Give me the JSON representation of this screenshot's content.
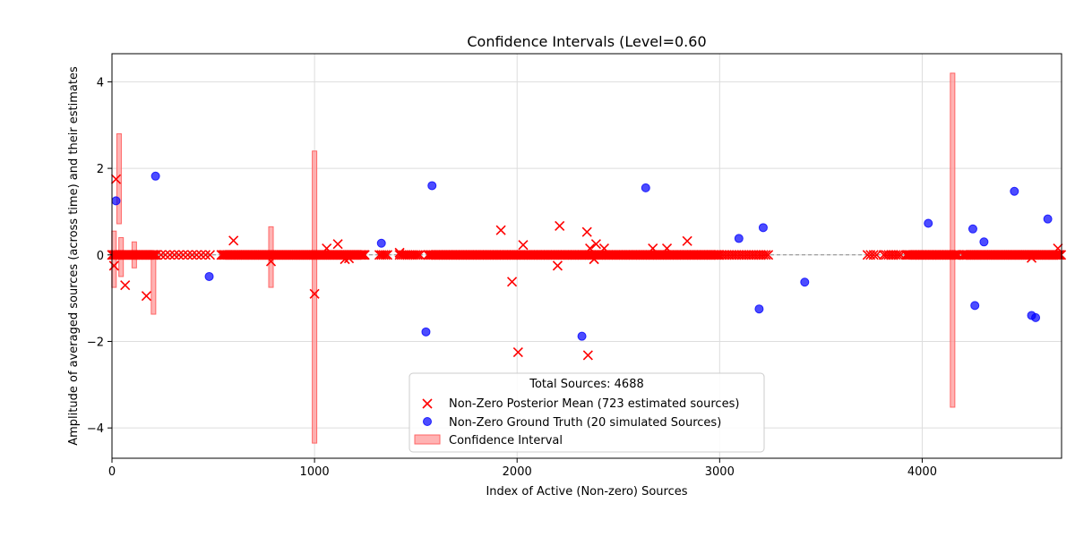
{
  "chart_data": {
    "type": "scatter",
    "title": "Confidence Intervals (Level=0.60",
    "xlabel": "Index of Active (Non-zero) Sources",
    "ylabel": "Amplitude of averaged sources (across time) and their estimates",
    "xlim": [
      0,
      4688
    ],
    "ylim": [
      -4.7,
      4.65
    ],
    "xticks": [
      0,
      1000,
      2000,
      3000,
      4000
    ],
    "yticks": [
      -4,
      -2,
      0,
      2,
      4
    ],
    "grid": true,
    "zero_line": true,
    "legend": {
      "placement": "lower-center",
      "title": "Total Sources: 4688",
      "entries": [
        {
          "label": "Non-Zero Posterior Mean (723 estimated sources)",
          "marker": "x",
          "color": "#ff0000"
        },
        {
          "label": "Non-Zero Ground Truth (20 simulated Sources)",
          "marker": "circle",
          "color": "#0000ff"
        },
        {
          "label": "Confidence Interval",
          "marker": "patch",
          "color": "#ff9999"
        }
      ]
    },
    "series": [
      {
        "name": "Non-Zero Posterior Mean (723 estimated sources)",
        "marker": "x",
        "color": "#ff0000",
        "points": [
          [
            10,
            -0.25
          ],
          [
            20,
            1.75
          ],
          [
            65,
            -0.7
          ],
          [
            170,
            -0.95
          ],
          [
            600,
            0.33
          ],
          [
            785,
            -0.15
          ],
          [
            1000,
            -0.9
          ],
          [
            1060,
            0.15
          ],
          [
            1115,
            0.25
          ],
          [
            1150,
            -0.1
          ],
          [
            1170,
            -0.08
          ],
          [
            1420,
            0.05
          ],
          [
            1920,
            0.57
          ],
          [
            1975,
            -0.62
          ],
          [
            2005,
            -2.25
          ],
          [
            2030,
            0.23
          ],
          [
            2200,
            -0.25
          ],
          [
            2210,
            0.67
          ],
          [
            2345,
            0.53
          ],
          [
            2350,
            -2.32
          ],
          [
            2360,
            0.15
          ],
          [
            2380,
            -0.1
          ],
          [
            2390,
            0.25
          ],
          [
            2430,
            0.15
          ],
          [
            2670,
            0.15
          ],
          [
            2740,
            0.15
          ],
          [
            2840,
            0.32
          ],
          [
            4540,
            -0.07
          ],
          [
            4670,
            0.15
          ]
        ],
        "zero_segments": [
          [
            0,
            220,
            6
          ],
          [
            220,
            500,
            22
          ],
          [
            540,
            1250,
            6
          ],
          [
            1320,
            1360,
            10
          ],
          [
            1420,
            1520,
            10
          ],
          [
            1560,
            3000,
            7
          ],
          [
            3000,
            3250,
            12
          ],
          [
            3730,
            3780,
            15
          ],
          [
            3810,
            3900,
            12
          ],
          [
            3920,
            4180,
            7
          ],
          [
            4200,
            4688,
            6
          ]
        ]
      },
      {
        "name": "Non-Zero Ground Truth (20 simulated Sources)",
        "marker": "circle",
        "color": "#0000ff",
        "points": [
          [
            20,
            1.25
          ],
          [
            215,
            1.82
          ],
          [
            480,
            -0.5
          ],
          [
            1330,
            0.27
          ],
          [
            1550,
            -1.78
          ],
          [
            1580,
            1.6
          ],
          [
            2320,
            -1.88
          ],
          [
            2635,
            1.55
          ],
          [
            3095,
            0.38
          ],
          [
            3195,
            -1.25
          ],
          [
            3215,
            0.63
          ],
          [
            3420,
            -0.63
          ],
          [
            4030,
            0.73
          ],
          [
            4250,
            0.6
          ],
          [
            4260,
            -1.17
          ],
          [
            4305,
            0.3
          ],
          [
            4455,
            1.47
          ],
          [
            4540,
            -1.4
          ],
          [
            4560,
            -1.45
          ],
          [
            4620,
            0.83
          ]
        ]
      }
    ],
    "confidence_intervals": [
      [
        10,
        -0.75,
        0.55
      ],
      [
        35,
        0.72,
        2.8
      ],
      [
        45,
        -0.5,
        0.4
      ],
      [
        110,
        -0.3,
        0.3
      ],
      [
        205,
        -1.37,
        0.05
      ],
      [
        785,
        -0.75,
        0.65
      ],
      [
        1000,
        -4.35,
        2.4
      ],
      [
        4150,
        -3.52,
        4.2
      ]
    ]
  }
}
